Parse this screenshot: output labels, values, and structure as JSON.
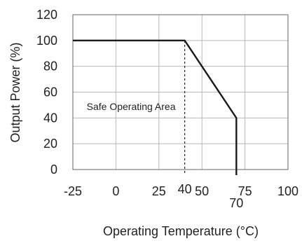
{
  "chart_data": {
    "type": "line",
    "title": "",
    "xlabel": "Operating Temperature (°C)",
    "ylabel": "Output Power (%)",
    "xlim": [
      -25,
      100
    ],
    "ylim": [
      0,
      120
    ],
    "x_ticks": [
      -25,
      0,
      25,
      50,
      75,
      100
    ],
    "y_ticks": [
      0,
      20,
      40,
      60,
      80,
      100,
      120
    ],
    "extra_x_ticks": [
      {
        "x": 40,
        "label": "40"
      },
      {
        "x": 70,
        "label": "70"
      }
    ],
    "grid": true,
    "series": [
      {
        "points": [
          {
            "x": -25,
            "y": 100
          },
          {
            "x": 40,
            "y": 100
          },
          {
            "x": 70,
            "y": 40
          },
          {
            "x": 70,
            "y": 0
          }
        ]
      }
    ],
    "reference_lines": [
      {
        "x": 40,
        "from": 0,
        "to": 100,
        "style": "dashed"
      }
    ],
    "annotations": [
      {
        "text": "Safe Operating Area",
        "x": -17,
        "y": 50
      }
    ],
    "colors": {
      "line": "#1a1a1a",
      "grid": "#b8b8b8",
      "frame": "#666666"
    }
  }
}
